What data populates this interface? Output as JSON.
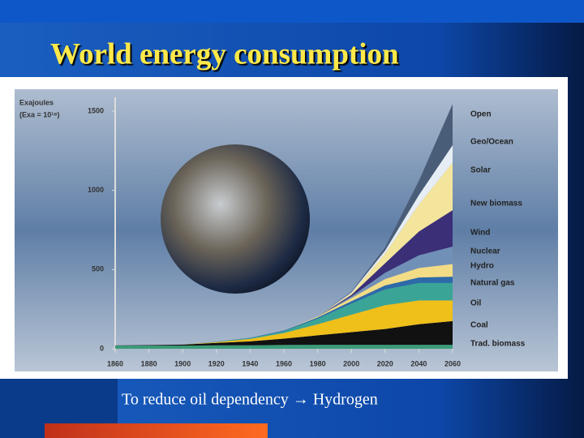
{
  "slide_title": "World energy consumption",
  "caption": "To reduce oil dependency → Hydrogen",
  "chart_data": {
    "type": "stacked-area",
    "y_label": "Exajoules",
    "y_label_note": "(Exa = 10¹⁸)",
    "x": [
      1860,
      1880,
      1900,
      1920,
      1940,
      1960,
      1980,
      2000,
      2020,
      2040,
      2060
    ],
    "xlim": [
      1860,
      2060
    ],
    "xticks": [
      1860,
      1880,
      1900,
      1920,
      1940,
      1960,
      1980,
      2000,
      2020,
      2040,
      2060
    ],
    "ylim": [
      0,
      1500
    ],
    "yticks": [
      0,
      500,
      1000,
      1500
    ],
    "series": [
      {
        "name": "Trad. biomass",
        "color": "#3a9c78",
        "values": [
          20,
          20,
          20,
          22,
          22,
          24,
          25,
          25,
          25,
          25,
          25
        ]
      },
      {
        "name": "Coal",
        "color": "#111111",
        "values": [
          1,
          3,
          6,
          15,
          25,
          40,
          60,
          80,
          100,
          130,
          150
        ]
      },
      {
        "name": "Oil",
        "color": "#efbf1a",
        "values": [
          0,
          0,
          0,
          5,
          15,
          35,
          70,
          110,
          150,
          150,
          130
        ]
      },
      {
        "name": "Natural gas",
        "color": "#3aa596",
        "values": [
          0,
          0,
          0,
          2,
          5,
          12,
          35,
          70,
          100,
          110,
          110
        ]
      },
      {
        "name": "Hydro",
        "color": "#2d6aa8",
        "values": [
          0,
          0,
          0,
          1,
          2,
          4,
          8,
          15,
          25,
          35,
          40
        ]
      },
      {
        "name": "Nuclear",
        "color": "#f2dc86",
        "values": [
          0,
          0,
          0,
          0,
          0,
          0,
          5,
          20,
          40,
          60,
          80
        ]
      },
      {
        "name": "Wind",
        "color": "#7190b8",
        "values": [
          0,
          0,
          0,
          0,
          0,
          0,
          0,
          10,
          40,
          80,
          110
        ]
      },
      {
        "name": "New biomass",
        "color": "#3b2f78",
        "values": [
          0,
          0,
          0,
          0,
          0,
          0,
          0,
          10,
          60,
          150,
          230
        ]
      },
      {
        "name": "Solar",
        "color": "#f4e59c",
        "values": [
          0,
          0,
          0,
          0,
          0,
          0,
          0,
          10,
          60,
          170,
          300
        ]
      },
      {
        "name": "Geo/Ocean",
        "color": "#e6edf4",
        "values": [
          0,
          0,
          0,
          0,
          0,
          0,
          0,
          5,
          20,
          60,
          110
        ]
      },
      {
        "name": "Open",
        "color": "#4a5d78",
        "values": [
          0,
          0,
          0,
          0,
          0,
          0,
          0,
          5,
          20,
          90,
          260
        ]
      }
    ]
  }
}
